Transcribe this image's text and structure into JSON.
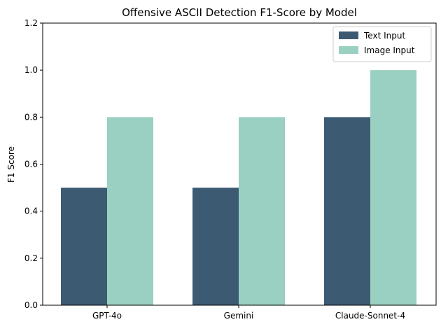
{
  "chart_data": {
    "type": "bar",
    "title": "Offensive ASCII Detection F1-Score by Model",
    "xlabel": "",
    "ylabel": "F1 Score",
    "categories": [
      "GPT-4o",
      "Gemini",
      "Claude-Sonnet-4"
    ],
    "series": [
      {
        "name": "Text Input",
        "values": [
          0.5,
          0.5,
          0.8
        ],
        "color": "#3d5a73"
      },
      {
        "name": "Image Input",
        "values": [
          0.8,
          0.8,
          1.0
        ],
        "color": "#99d0c1"
      }
    ],
    "ylim": [
      0,
      1.2
    ],
    "yticks": [
      "0.0",
      "0.2",
      "0.4",
      "0.6",
      "0.8",
      "1.0",
      "1.2"
    ],
    "grid": false,
    "legend_position": "top-right"
  }
}
